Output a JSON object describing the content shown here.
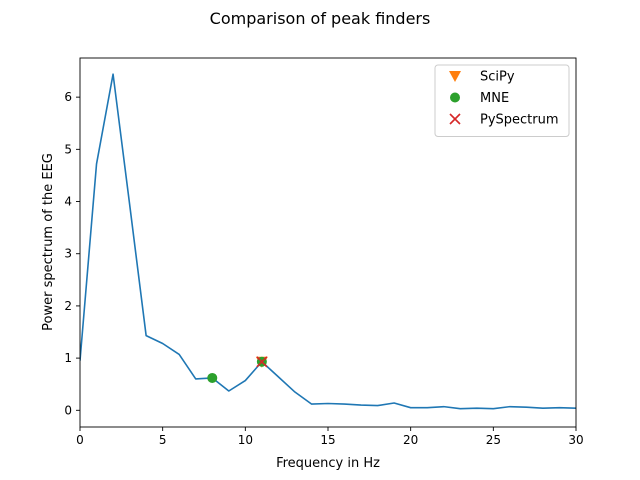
{
  "chart_data": {
    "type": "line",
    "title": "Comparison of peak finders",
    "xlabel": "Frequency in Hz",
    "ylabel": "Power spectrum of the EEG",
    "xlim": [
      0,
      30
    ],
    "ylim": [
      -0.32,
      6.75
    ],
    "x_ticks": [
      0,
      5,
      10,
      15,
      20,
      25,
      30
    ],
    "y_ticks": [
      0,
      1,
      2,
      3,
      4,
      5,
      6
    ],
    "grid": false,
    "legend_position": "top-right",
    "series": [
      {
        "color": "#1f77b4",
        "x": [
          0,
          1,
          2,
          3,
          4,
          5,
          6,
          7,
          8,
          9,
          10,
          11,
          12,
          13,
          14,
          15,
          16,
          17,
          18,
          19,
          20,
          21,
          22,
          23,
          24,
          25,
          26,
          27,
          28,
          29,
          30
        ],
        "values": [
          0.95,
          4.72,
          6.44,
          3.95,
          1.43,
          1.28,
          1.07,
          0.6,
          0.62,
          0.37,
          0.57,
          0.93,
          0.64,
          0.35,
          0.12,
          0.13,
          0.12,
          0.1,
          0.09,
          0.14,
          0.05,
          0.05,
          0.07,
          0.03,
          0.04,
          0.03,
          0.07,
          0.06,
          0.04,
          0.05,
          0.04
        ]
      }
    ],
    "markers": [
      {
        "name": "SciPy",
        "marker": "triangle-down",
        "color": "#ff7f0e",
        "points": [
          [
            11,
            0.93
          ]
        ]
      },
      {
        "name": "MNE",
        "marker": "circle",
        "color": "#2ca02c",
        "points": [
          [
            8,
            0.62
          ],
          [
            11,
            0.93
          ]
        ]
      },
      {
        "name": "PySpectrum",
        "marker": "x",
        "color": "#d62728",
        "points": [
          [
            11,
            0.93
          ]
        ]
      }
    ]
  }
}
